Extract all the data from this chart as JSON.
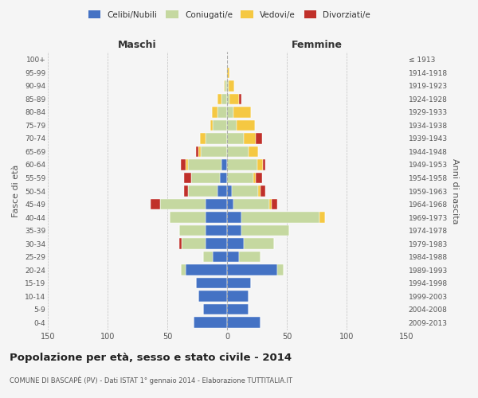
{
  "age_groups": [
    "0-4",
    "5-9",
    "10-14",
    "15-19",
    "20-24",
    "25-29",
    "30-34",
    "35-39",
    "40-44",
    "45-49",
    "50-54",
    "55-59",
    "60-64",
    "65-69",
    "70-74",
    "75-79",
    "80-84",
    "85-89",
    "90-94",
    "95-99",
    "100+"
  ],
  "birth_years": [
    "2009-2013",
    "2004-2008",
    "1999-2003",
    "1994-1998",
    "1989-1993",
    "1984-1988",
    "1979-1983",
    "1974-1978",
    "1969-1973",
    "1964-1968",
    "1959-1963",
    "1954-1958",
    "1949-1953",
    "1944-1948",
    "1939-1943",
    "1934-1938",
    "1929-1933",
    "1924-1928",
    "1919-1923",
    "1914-1918",
    "≤ 1913"
  ],
  "males": {
    "celibi": [
      28,
      20,
      24,
      26,
      35,
      12,
      18,
      18,
      18,
      18,
      8,
      6,
      5,
      0,
      0,
      0,
      0,
      0,
      0,
      0,
      0
    ],
    "coniugati": [
      0,
      0,
      0,
      0,
      4,
      8,
      20,
      22,
      30,
      38,
      25,
      24,
      28,
      22,
      18,
      12,
      8,
      5,
      2,
      1,
      0
    ],
    "vedovi": [
      0,
      0,
      0,
      0,
      0,
      0,
      0,
      0,
      0,
      0,
      0,
      0,
      2,
      2,
      5,
      2,
      5,
      3,
      1,
      0,
      0
    ],
    "divorziati": [
      0,
      0,
      0,
      0,
      0,
      0,
      2,
      0,
      0,
      8,
      3,
      6,
      4,
      2,
      0,
      0,
      0,
      0,
      0,
      0,
      0
    ]
  },
  "females": {
    "nubili": [
      28,
      18,
      18,
      20,
      42,
      10,
      14,
      12,
      12,
      5,
      4,
      0,
      0,
      0,
      0,
      0,
      0,
      0,
      0,
      0,
      0
    ],
    "coniugate": [
      0,
      0,
      0,
      0,
      5,
      18,
      25,
      40,
      65,
      30,
      22,
      22,
      25,
      18,
      14,
      8,
      5,
      2,
      1,
      0,
      0
    ],
    "vedove": [
      0,
      0,
      0,
      0,
      0,
      0,
      0,
      0,
      5,
      2,
      2,
      2,
      5,
      8,
      10,
      15,
      15,
      8,
      5,
      2,
      0
    ],
    "divorziate": [
      0,
      0,
      0,
      0,
      0,
      0,
      0,
      0,
      0,
      5,
      4,
      5,
      2,
      0,
      5,
      0,
      0,
      2,
      0,
      0,
      0
    ]
  },
  "colors": {
    "celibi_nubili": "#4472C4",
    "coniugati": "#C5D8A0",
    "vedovi": "#F5C842",
    "divorziati": "#C0302A"
  },
  "title": "Popolazione per età, sesso e stato civile - 2014",
  "subtitle": "COMUNE DI BASCAPÈ (PV) - Dati ISTAT 1° gennaio 2014 - Elaborazione TUTTITALIA.IT",
  "xlabel_left": "Maschi",
  "xlabel_right": "Femmine",
  "ylabel_left": "Fasce di età",
  "ylabel_right": "Anni di nascita",
  "xlim": 150,
  "background_color": "#f5f5f5",
  "grid_color": "#cccccc"
}
